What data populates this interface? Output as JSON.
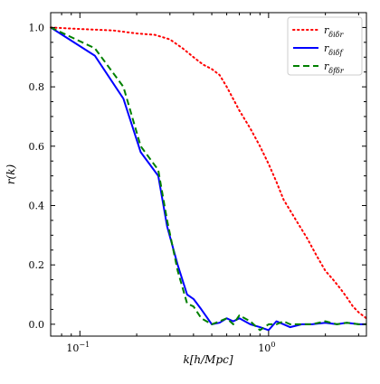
{
  "chart_data": {
    "type": "line",
    "xlabel": "k[h/Mpc]",
    "ylabel": "r(k)",
    "xscale": "log",
    "xlim": [
      0.07,
      3.3
    ],
    "ylim": [
      -0.04,
      1.05
    ],
    "x_ticks": [
      {
        "value": 0.1,
        "label": "10",
        "exp": "−1"
      },
      {
        "value": 1,
        "label": "10",
        "exp": "0"
      }
    ],
    "y_ticks": [
      {
        "value": 0.0,
        "label": "0.0"
      },
      {
        "value": 0.2,
        "label": "0.2"
      },
      {
        "value": 0.4,
        "label": "0.4"
      },
      {
        "value": 0.6,
        "label": "0.6"
      },
      {
        "value": 0.8,
        "label": "0.8"
      },
      {
        "value": 1.0,
        "label": "1.0"
      }
    ],
    "grid": false,
    "legend_position": "top-right",
    "series": [
      {
        "name": "r",
        "sub": "δiδr",
        "color": "#ff0000",
        "style": "dotted",
        "x": [
          0.07,
          0.1,
          0.15,
          0.2,
          0.25,
          0.3,
          0.35,
          0.4,
          0.45,
          0.5,
          0.55,
          0.6,
          0.7,
          0.8,
          0.9,
          1.0,
          1.1,
          1.2,
          1.4,
          1.6,
          1.8,
          2.0,
          2.2,
          2.4,
          2.6,
          2.8,
          3.0,
          3.3
        ],
        "y": [
          1.0,
          0.995,
          0.99,
          0.98,
          0.975,
          0.96,
          0.93,
          0.9,
          0.875,
          0.86,
          0.84,
          0.8,
          0.72,
          0.66,
          0.6,
          0.54,
          0.48,
          0.42,
          0.35,
          0.29,
          0.23,
          0.18,
          0.15,
          0.12,
          0.09,
          0.06,
          0.04,
          0.02
        ]
      },
      {
        "name": "r",
        "sub": "δiδf",
        "color": "#0000ff",
        "style": "solid",
        "x": [
          0.07,
          0.12,
          0.17,
          0.21,
          0.26,
          0.29,
          0.33,
          0.37,
          0.4,
          0.44,
          0.5,
          0.55,
          0.6,
          0.65,
          0.7,
          0.8,
          0.9,
          1.0,
          1.1,
          1.2,
          1.3,
          1.5,
          1.7,
          2.0,
          2.3,
          2.6,
          3.0,
          3.3
        ],
        "y": [
          1.0,
          0.905,
          0.76,
          0.58,
          0.5,
          0.33,
          0.2,
          0.1,
          0.085,
          0.05,
          0.0,
          0.005,
          0.02,
          0.01,
          0.02,
          0.0,
          -0.01,
          -0.02,
          0.01,
          0.0,
          -0.01,
          0.0,
          0.0,
          0.005,
          0.0,
          0.005,
          0.0,
          0.0
        ]
      },
      {
        "name": "r",
        "sub": "δfδr",
        "color": "#008000",
        "style": "dashed",
        "x": [
          0.07,
          0.12,
          0.17,
          0.21,
          0.26,
          0.29,
          0.33,
          0.37,
          0.4,
          0.44,
          0.5,
          0.55,
          0.6,
          0.65,
          0.7,
          0.8,
          0.9,
          1.0,
          1.1,
          1.2,
          1.3,
          1.5,
          1.7,
          2.0,
          2.3,
          2.6,
          3.0,
          3.3
        ],
        "y": [
          1.0,
          0.93,
          0.8,
          0.6,
          0.52,
          0.35,
          0.18,
          0.07,
          0.06,
          0.02,
          0.0,
          0.01,
          0.02,
          0.0,
          0.03,
          0.01,
          -0.02,
          0.0,
          0.0,
          0.01,
          0.0,
          0.0,
          0.0,
          0.01,
          0.0,
          0.005,
          0.0,
          0.0
        ]
      }
    ]
  }
}
